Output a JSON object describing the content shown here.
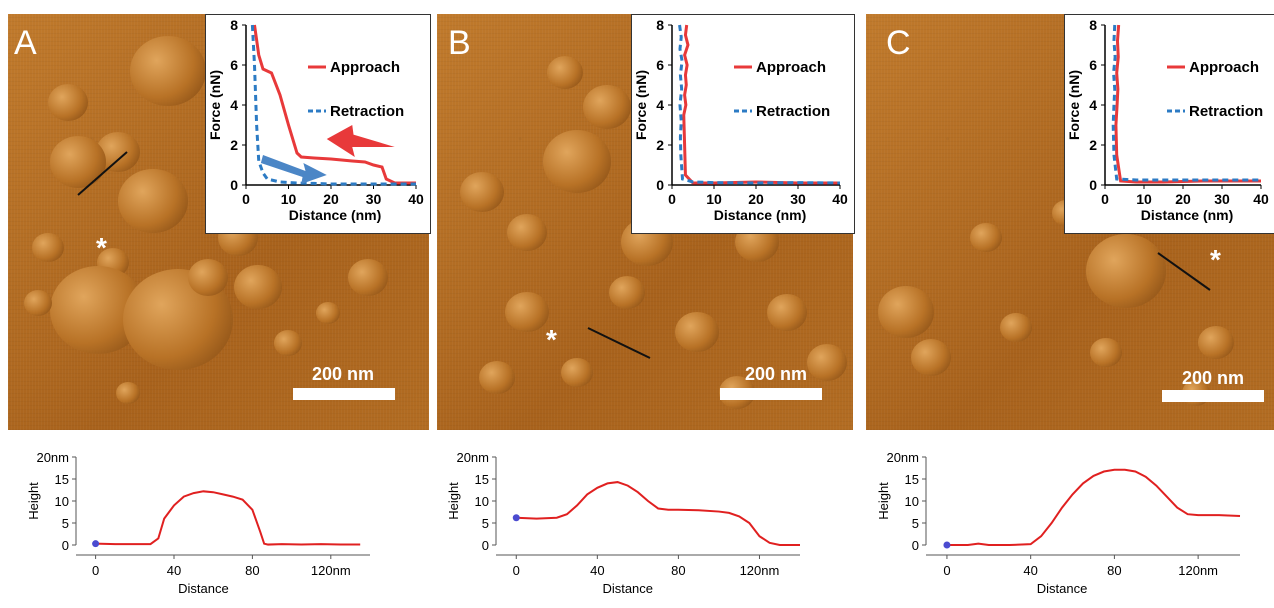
{
  "panels": [
    {
      "letter": "A",
      "scale_label": "200 nm"
    },
    {
      "letter": "B",
      "scale_label": "200 nm"
    },
    {
      "letter": "C",
      "scale_label": "200 nm"
    }
  ],
  "star_label": "*",
  "chart_data": [
    {
      "type": "line",
      "panel": "A",
      "xlabel": "Distance (nm)",
      "ylabel": "Force (nN)",
      "xlim": [
        0,
        40
      ],
      "ylim": [
        0,
        8
      ],
      "xticks": [
        "0",
        "10",
        "20",
        "30",
        "40"
      ],
      "yticks": [
        "0",
        "2",
        "4",
        "6",
        "8"
      ],
      "legend": "top-right",
      "series": [
        {
          "name": "Approach",
          "style": "solid",
          "color": "#e8393a",
          "x": [
            2,
            3,
            4,
            6,
            8,
            10,
            12,
            13,
            16,
            20,
            25,
            28,
            30,
            32,
            33,
            35,
            40
          ],
          "y": [
            8,
            6.5,
            5.8,
            5.6,
            4.5,
            3.0,
            1.6,
            1.4,
            1.35,
            1.3,
            1.2,
            1.15,
            1.0,
            0.9,
            0.3,
            0.1,
            0.1
          ]
        },
        {
          "name": "Retraction",
          "style": "dashed",
          "color": "#2c7bc4",
          "x": [
            1.5,
            2,
            2.5,
            3,
            4,
            5,
            8,
            12,
            16,
            20,
            30,
            40
          ],
          "y": [
            8,
            6,
            3,
            1.2,
            0.6,
            0.3,
            0.15,
            0.1,
            0.08,
            0.05,
            0.05,
            0.05
          ]
        }
      ]
    },
    {
      "type": "line",
      "panel": "B",
      "xlabel": "Distance (nm)",
      "ylabel": "Force (nN)",
      "xlim": [
        0,
        40
      ],
      "ylim": [
        0,
        8
      ],
      "xticks": [
        "0",
        "10",
        "20",
        "30",
        "40"
      ],
      "yticks": [
        "0",
        "2",
        "4",
        "6",
        "8"
      ],
      "legend": "top-right",
      "series": [
        {
          "name": "Approach",
          "style": "solid",
          "color": "#e8393a",
          "x": [
            3.5,
            3.2,
            3.8,
            3.0,
            3.6,
            3.2,
            3.4,
            3.0,
            3.3,
            2.8,
            3.0,
            3.2,
            5,
            10,
            20,
            30,
            40
          ],
          "y": [
            8,
            7.5,
            7,
            6.5,
            6,
            5.5,
            5,
            4.5,
            4,
            3.5,
            2,
            0.5,
            0.1,
            0.1,
            0.15,
            0.1,
            0.1
          ]
        },
        {
          "name": "Retraction",
          "style": "dashed",
          "color": "#2c7bc4",
          "x": [
            1.8,
            2.2,
            1.9,
            2.4,
            2.0,
            2.3,
            1.9,
            2.2,
            2.0,
            2.1,
            2.5,
            5,
            10,
            20,
            30,
            40
          ],
          "y": [
            8,
            7.4,
            6.8,
            6.2,
            5.5,
            4.8,
            4.0,
            3.2,
            2.4,
            1.5,
            0.3,
            0.15,
            0.12,
            0.1,
            0.12,
            0.1
          ]
        }
      ]
    },
    {
      "type": "line",
      "panel": "C",
      "xlabel": "Distance (nm)",
      "ylabel": "Force (nN)",
      "xlim": [
        0,
        40
      ],
      "ylim": [
        0,
        8
      ],
      "xticks": [
        "0",
        "10",
        "20",
        "30",
        "40"
      ],
      "yticks": [
        "0",
        "2",
        "4",
        "6",
        "8"
      ],
      "legend": "top-right",
      "series": [
        {
          "name": "Approach",
          "style": "solid",
          "color": "#e8393a",
          "x": [
            3.5,
            3.2,
            3.4,
            3.0,
            3.3,
            3.1,
            2.8,
            3.0,
            4,
            8,
            15,
            25,
            35,
            40
          ],
          "y": [
            8,
            7.2,
            6.4,
            5.6,
            4.8,
            4.0,
            3,
            1.5,
            0.2,
            0.15,
            0.15,
            0.2,
            0.2,
            0.2
          ]
        },
        {
          "name": "Retraction",
          "style": "dashed",
          "color": "#2c7bc4",
          "x": [
            2.5,
            2.3,
            2.6,
            2.2,
            2.5,
            2.3,
            2.1,
            2.3,
            3,
            8,
            15,
            25,
            35,
            40
          ],
          "y": [
            8,
            7.2,
            6.4,
            5.6,
            4.8,
            4.0,
            3,
            1.5,
            0.3,
            0.25,
            0.25,
            0.25,
            0.25,
            0.25
          ]
        }
      ]
    },
    {
      "type": "line",
      "panel": "A-profile",
      "xlabel": "Distance",
      "ylabel": "Height",
      "xlim": [
        -10,
        140
      ],
      "ylim": [
        0,
        20
      ],
      "xticks": [
        "0",
        "40",
        "80",
        "120nm"
      ],
      "yticks": [
        "0",
        "5",
        "10",
        "15",
        "20nm"
      ],
      "series": [
        {
          "color": "#e02020",
          "x": [
            0,
            10,
            20,
            28,
            32,
            35,
            40,
            45,
            50,
            55,
            60,
            65,
            70,
            75,
            80,
            84,
            86,
            88,
            95,
            105,
            115,
            125,
            135
          ],
          "y": [
            0.3,
            0.2,
            0.2,
            0.2,
            1.5,
            6,
            9,
            11,
            11.8,
            12.2,
            12.0,
            11.5,
            11.0,
            10.3,
            8.0,
            3,
            0.3,
            0.1,
            0.2,
            0.1,
            0.2,
            0.1,
            0.1
          ]
        }
      ]
    },
    {
      "type": "line",
      "panel": "B-profile",
      "xlabel": "Distance",
      "ylabel": "Height",
      "xlim": [
        -10,
        140
      ],
      "ylim": [
        0,
        20
      ],
      "xticks": [
        "0",
        "40",
        "80",
        "120nm"
      ],
      "yticks": [
        "0",
        "5",
        "10",
        "15",
        "20nm"
      ],
      "series": [
        {
          "color": "#e02020",
          "x": [
            0,
            10,
            20,
            25,
            30,
            35,
            40,
            45,
            50,
            55,
            60,
            65,
            70,
            75,
            80,
            90,
            100,
            105,
            110,
            115,
            120,
            125,
            130,
            135,
            140
          ],
          "y": [
            6.2,
            6.0,
            6.2,
            7,
            9,
            11.5,
            13,
            14,
            14.3,
            13.5,
            12,
            10,
            8.3,
            8.0,
            8.0,
            7.9,
            7.6,
            7.3,
            6.5,
            5,
            2,
            0.5,
            0,
            0,
            0
          ]
        }
      ]
    },
    {
      "type": "line",
      "panel": "C-profile",
      "xlabel": "Distance",
      "ylabel": "Height",
      "xlim": [
        -10,
        140
      ],
      "ylim": [
        0,
        20
      ],
      "xticks": [
        "0",
        "40",
        "80",
        "120nm"
      ],
      "yticks": [
        "0",
        "5",
        "10",
        "15",
        "20nm"
      ],
      "series": [
        {
          "color": "#e02020",
          "x": [
            0,
            10,
            15,
            20,
            30,
            40,
            45,
            50,
            55,
            60,
            65,
            70,
            75,
            80,
            85,
            90,
            95,
            100,
            105,
            110,
            115,
            120,
            130,
            140
          ],
          "y": [
            0,
            0,
            0.3,
            0,
            0,
            0.2,
            2,
            5,
            8.5,
            11.5,
            14,
            15.7,
            16.7,
            17.1,
            17.1,
            16.7,
            15.5,
            13.5,
            11,
            8.5,
            7,
            6.8,
            6.8,
            6.6
          ]
        }
      ]
    }
  ]
}
